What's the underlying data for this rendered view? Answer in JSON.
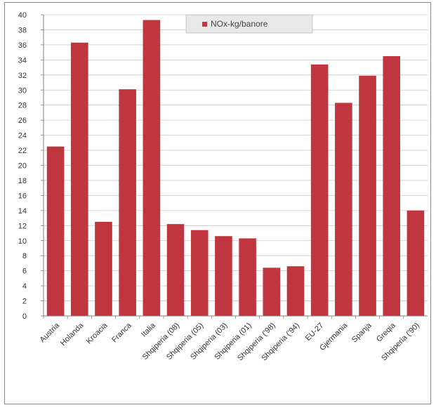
{
  "chart_data": {
    "type": "bar",
    "categories": [
      "Austria",
      "Holanda",
      "Kroacia",
      "Franca",
      "Italia",
      "Shqiperia (08)",
      "Shqiperia (05)",
      "Shqiperia (03)",
      "Shqiperia (01)",
      "Shqiperia ('98)",
      "Shqiperia ('94)",
      "EU-27",
      "Gjermania",
      "Spanja",
      "Greqia",
      "Shqiperia ('90)"
    ],
    "series": [
      {
        "name": "NOx-kg/banore",
        "values": [
          22.5,
          36.3,
          12.5,
          30.1,
          39.3,
          12.2,
          11.4,
          10.6,
          10.3,
          6.4,
          6.6,
          33.4,
          28.3,
          31.9,
          34.5,
          14.0
        ]
      }
    ],
    "ylim": [
      0,
      40
    ],
    "yticks": [
      0,
      2,
      4,
      6,
      8,
      10,
      12,
      14,
      16,
      18,
      20,
      22,
      24,
      26,
      28,
      30,
      32,
      34,
      36,
      38,
      40
    ],
    "grid": true,
    "legend_position": "top-center",
    "bar_color": "#c0363e",
    "title": "",
    "xlabel": "",
    "ylabel": ""
  }
}
